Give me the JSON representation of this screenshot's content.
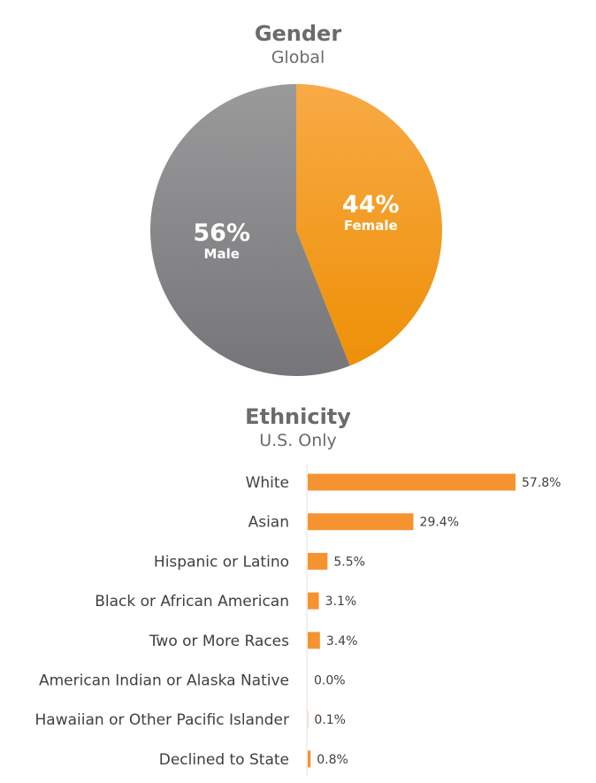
{
  "chart_data": [
    {
      "type": "pie",
      "title": "Gender",
      "subtitle": "Global",
      "slices": [
        {
          "label": "Female",
          "value": 44,
          "value_label": "44%",
          "color": "#f7a02b"
        },
        {
          "label": "Male",
          "value": 56,
          "value_label": "56%",
          "color": "#8a8a8c"
        }
      ]
    },
    {
      "type": "bar",
      "orientation": "horizontal",
      "title": "Ethnicity",
      "subtitle": "U.S. Only",
      "categories": [
        "White",
        "Asian",
        "Hispanic or Latino",
        "Black or African American",
        "Two or More Races",
        "American Indian or Alaska Native",
        "Hawaiian or Other Pacific Islander",
        "Declined to State"
      ],
      "values": [
        57.8,
        29.4,
        5.5,
        3.1,
        3.4,
        0.0,
        0.1,
        0.8
      ],
      "value_labels": [
        "57.8%",
        "29.4%",
        "5.5%",
        "3.1%",
        "3.4%",
        "0.0%",
        "0.1%",
        "0.8%"
      ],
      "bar_color": "#f59331",
      "grid": false,
      "legend": "none"
    }
  ]
}
